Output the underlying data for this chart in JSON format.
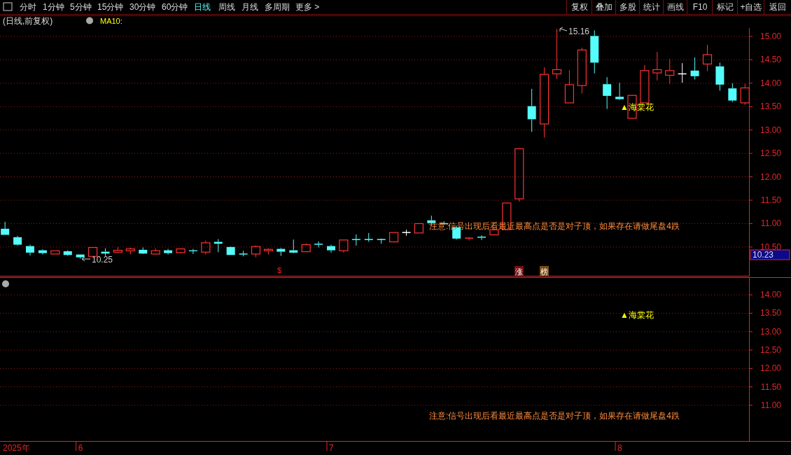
{
  "chart_data": [
    {
      "type": "other",
      "annotations": [
        "分时",
        "1分钟",
        "5分钟",
        "15分钟",
        "30分钟",
        "60分钟",
        "日线",
        "周线",
        "月线",
        "多周期",
        "更多 >",
        "复权",
        "叠加",
        "多股",
        "统计",
        "画线",
        "F10",
        "标记",
        "+自选",
        "返回"
      ]
    },
    {
      "type": "candlestick",
      "title": "(日线,前复权)",
      "categories": [
        null,
        null,
        null,
        null,
        null,
        null,
        null,
        null,
        null,
        null,
        null,
        null,
        null,
        null,
        null,
        null,
        null,
        null,
        null,
        null,
        null,
        null,
        null,
        null,
        null,
        null,
        null,
        null,
        null,
        null,
        null,
        null,
        null,
        null,
        null,
        null,
        null,
        null,
        null,
        null,
        null,
        null,
        null,
        null,
        null,
        null,
        null,
        null,
        null,
        null,
        null,
        null,
        null,
        null,
        null,
        null,
        null,
        null,
        null,
        null
      ],
      "ohlc": [
        [
          10.89,
          11.04,
          10.76,
          10.76
        ],
        [
          10.71,
          10.74,
          10.53,
          10.55
        ],
        [
          10.52,
          10.55,
          10.32,
          10.38
        ],
        [
          10.43,
          10.45,
          10.34,
          10.37
        ],
        [
          10.35,
          10.42,
          10.35,
          10.42
        ],
        [
          10.41,
          10.43,
          10.31,
          10.33
        ],
        [
          10.34,
          10.34,
          10.25,
          10.28
        ],
        [
          10.3,
          10.49,
          10.3,
          10.49
        ],
        [
          10.4,
          10.47,
          10.31,
          10.36
        ],
        [
          10.39,
          10.5,
          10.37,
          10.43
        ],
        [
          10.42,
          10.49,
          10.34,
          10.46
        ],
        [
          10.44,
          10.49,
          10.35,
          10.36
        ],
        [
          10.35,
          10.47,
          10.35,
          10.42
        ],
        [
          10.43,
          10.46,
          10.34,
          10.37
        ],
        [
          10.38,
          10.47,
          10.37,
          10.46
        ],
        [
          10.43,
          10.46,
          10.35,
          10.41
        ],
        [
          10.39,
          10.64,
          10.34,
          10.59
        ],
        [
          10.61,
          10.67,
          10.39,
          10.57
        ],
        [
          10.5,
          10.51,
          10.33,
          10.33
        ],
        [
          10.35,
          10.42,
          10.3,
          10.34
        ],
        [
          10.35,
          10.53,
          10.28,
          10.51
        ],
        [
          10.42,
          10.47,
          10.34,
          10.45
        ],
        [
          10.46,
          10.48,
          10.31,
          10.4
        ],
        [
          10.43,
          10.66,
          10.37,
          10.38
        ],
        [
          10.4,
          10.58,
          10.4,
          10.55
        ],
        [
          10.56,
          10.62,
          10.49,
          10.55
        ],
        [
          10.52,
          10.55,
          10.38,
          10.43
        ],
        [
          10.42,
          10.65,
          10.38,
          10.65
        ],
        [
          10.66,
          10.77,
          10.53,
          10.65
        ],
        [
          10.66,
          10.8,
          10.61,
          10.65
        ],
        [
          10.66,
          10.68,
          10.57,
          10.65
        ],
        [
          10.61,
          10.81,
          10.6,
          10.81
        ],
        [
          10.81,
          10.87,
          10.74,
          10.81
        ],
        [
          10.8,
          11.01,
          10.8,
          11.0
        ],
        [
          11.07,
          11.17,
          10.95,
          11.01
        ],
        [
          11.01,
          11.05,
          10.98,
          10.99
        ],
        [
          10.92,
          10.95,
          10.66,
          10.68
        ],
        [
          10.68,
          10.71,
          10.64,
          10.69
        ],
        [
          10.71,
          10.75,
          10.65,
          10.7
        ],
        [
          10.76,
          10.9,
          10.76,
          10.87
        ],
        [
          10.87,
          11.44,
          10.87,
          11.44
        ],
        [
          11.53,
          12.6,
          11.47,
          12.6
        ],
        [
          13.51,
          13.88,
          12.96,
          13.23
        ],
        [
          13.13,
          14.34,
          12.84,
          14.19
        ],
        [
          14.2,
          15.16,
          14.09,
          14.29
        ],
        [
          13.58,
          14.28,
          13.58,
          13.97
        ],
        [
          13.95,
          14.76,
          13.78,
          14.71
        ],
        [
          15.01,
          15.13,
          14.21,
          14.44
        ],
        [
          13.98,
          14.13,
          13.45,
          13.73
        ],
        [
          13.71,
          14.01,
          13.64,
          13.66
        ],
        [
          13.25,
          13.75,
          13.25,
          13.74
        ],
        [
          13.58,
          14.39,
          13.58,
          14.27
        ],
        [
          14.22,
          14.67,
          14.06,
          14.29
        ],
        [
          14.17,
          14.52,
          13.98,
          14.27
        ],
        [
          14.2,
          14.43,
          14.01,
          14.2
        ],
        [
          14.27,
          14.55,
          14.08,
          14.15
        ],
        [
          14.41,
          14.82,
          14.26,
          14.61
        ],
        [
          14.36,
          14.44,
          13.84,
          13.97
        ],
        [
          13.89,
          14.0,
          13.6,
          13.63
        ],
        [
          13.58,
          13.99,
          13.54,
          13.9
        ]
      ],
      "colors": [
        "#54fcfc",
        "#54fcfc",
        "#54fcfc",
        "#54fcfc",
        "#ff3232",
        "#54fcfc",
        "#54fcfc",
        "#ff3232",
        "#54fcfc",
        "#ff3232",
        "#ff3232",
        "#54fcfc",
        "#ff3232",
        "#54fcfc",
        "#ff3232",
        "#54fcfc",
        "#ff3232",
        "#54fcfc",
        "#54fcfc",
        "#54fcfc",
        "#ff3232",
        "#ff3232",
        "#54fcfc",
        "#54fcfc",
        "#ff3232",
        "#54fcfc",
        "#54fcfc",
        "#ff3232",
        "#54fcfc",
        "#54fcfc",
        "#54fcfc",
        "#ff3232",
        "#ffffff",
        "#ff3232",
        "#54fcfc",
        "#54fcfc",
        "#54fcfc",
        "#ff3232",
        "#54fcfc",
        "#ff3232",
        "#ff3232",
        "#ff3232",
        "#54fcfc",
        "#ff3232",
        "#ff3232",
        "#ff3232",
        "#ff3232",
        "#54fcfc",
        "#54fcfc",
        "#54fcfc",
        "#ff3232",
        "#ff3232",
        "#ff3232",
        "#ff3232",
        "#ffffff",
        "#54fcfc",
        "#ff3232",
        "#54fcfc",
        "#54fcfc",
        "#ff3232"
      ],
      "ylim": [
        9.87,
        15.18
      ],
      "yticks": [
        {
          "value": 10.5,
          "label": "10.50"
        },
        {
          "value": 11,
          "label": "11.00"
        },
        {
          "value": 11.5,
          "label": "11.50"
        },
        {
          "value": 12,
          "label": "12.00"
        },
        {
          "value": 12.5,
          "label": "12.50"
        },
        {
          "value": 13,
          "label": "13.00"
        },
        {
          "value": 13.5,
          "label": "13.50"
        },
        {
          "value": 14,
          "label": "14.00"
        },
        {
          "value": 14.5,
          "label": "14.50"
        },
        {
          "value": 15,
          "label": "15.00"
        }
      ],
      "grid": "y",
      "tick_labels": "y",
      "annotations": [
        "15.16",
        "10.25",
        {
          "text": "▲海棠花",
          "y": 13.5
        },
        "注意:信号出现后看最近最高点是否是对子顶，如果存在请做尾盘4跌",
        "MA10:",
        "10.23",
        "$",
        "涨",
        "榜"
      ]
    },
    {
      "type": "line",
      "values": [
        null,
        null,
        null,
        null,
        null,
        null,
        null,
        null,
        null,
        null,
        null,
        null,
        null,
        null,
        null,
        null,
        null,
        null,
        null,
        null,
        null,
        null,
        null,
        null,
        null,
        null,
        null,
        null,
        null,
        null,
        null,
        null,
        null,
        null,
        null,
        null,
        null,
        null,
        null,
        null,
        null,
        null,
        null,
        null,
        null,
        null,
        null,
        null,
        null,
        null,
        null,
        null,
        null,
        null,
        null,
        null,
        null,
        null,
        null,
        null
      ],
      "categories": [
        "2025年",
        null,
        null,
        null,
        null,
        null,
        "6",
        null,
        null,
        null,
        null,
        null,
        null,
        null,
        null,
        null,
        null,
        null,
        null,
        null,
        null,
        null,
        null,
        null,
        null,
        null,
        "7",
        null,
        null,
        null,
        null,
        null,
        null,
        null,
        null,
        null,
        null,
        null,
        null,
        null,
        null,
        null,
        null,
        null,
        null,
        null,
        null,
        null,
        null,
        "8",
        null,
        null,
        null,
        null,
        null,
        null,
        null,
        null,
        null,
        null
      ],
      "ylim": [
        10.03,
        14.46
      ],
      "yticks": [
        {
          "value": 11,
          "label": "11.00"
        },
        {
          "value": 11.5,
          "label": "11.50"
        },
        {
          "value": 12,
          "label": "12.00"
        },
        {
          "value": 12.5,
          "label": "12.50"
        },
        {
          "value": 13,
          "label": "13.00"
        },
        {
          "value": 13.5,
          "label": "13.50"
        },
        {
          "value": 14,
          "label": "14.00"
        }
      ],
      "grid": "y",
      "annotations": [
        "▲海棠花",
        "注意:信号出现后看最近最高点是否是对子顶，如果存在请做尾盘4跌"
      ]
    }
  ]
}
